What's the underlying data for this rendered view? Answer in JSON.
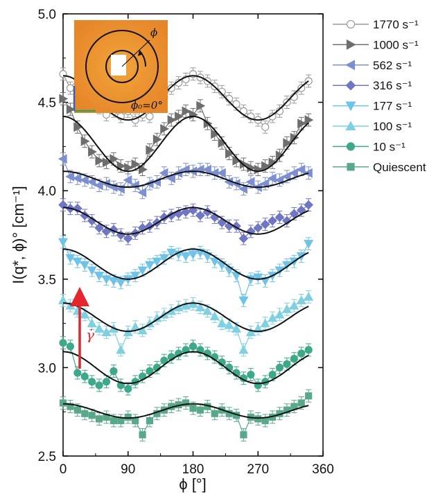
{
  "chart_data": {
    "type": "line",
    "xlabel": "ϕ [°]",
    "ylabel": "I(q*, ϕ)° [cm⁻¹]",
    "xlim": [
      0,
      360
    ],
    "ylim": [
      2.5,
      5.0
    ],
    "xticks": [
      0,
      90,
      180,
      270,
      360
    ],
    "xtick_labels": [
      "0",
      "90",
      "180",
      "270",
      "360"
    ],
    "yticks": [
      2.5,
      3.0,
      3.5,
      4.0,
      4.5,
      5.0
    ],
    "ytick_labels": [
      "2.5",
      "3.0",
      "3.5",
      "4.0",
      "4.5",
      "5.0"
    ],
    "grid": false,
    "legend_position": "right",
    "fit_note": "smooth black fit curves overlay each series",
    "series": [
      {
        "name": "1770 s⁻¹",
        "color": "#9a9a9a",
        "marker": "circle-open",
        "offset": 4.525,
        "amp": 0.125,
        "x": [
          0,
          10,
          20,
          30,
          40,
          50,
          60,
          70,
          80,
          90,
          100,
          110,
          120,
          130,
          140,
          150,
          160,
          170,
          180,
          190,
          200,
          210,
          220,
          230,
          240,
          250,
          260,
          270,
          280,
          290,
          300,
          310,
          320,
          330,
          340
        ],
        "y": [
          4.66,
          4.58,
          4.63,
          4.55,
          4.5,
          4.47,
          4.43,
          4.45,
          4.42,
          4.45,
          4.4,
          4.43,
          4.42,
          4.48,
          4.53,
          4.58,
          4.61,
          4.63,
          4.66,
          4.64,
          4.62,
          4.59,
          4.56,
          4.52,
          4.49,
          4.45,
          4.42,
          4.4,
          4.36,
          4.42,
          4.45,
          4.5,
          4.53,
          4.58,
          4.62
        ]
      },
      {
        "name": "1000 s⁻¹",
        "color": "#6e6e6e",
        "marker": "triangle-right",
        "offset": 4.265,
        "amp": 0.155,
        "x": [
          0,
          10,
          20,
          30,
          40,
          50,
          60,
          70,
          80,
          90,
          100,
          110,
          120,
          130,
          140,
          150,
          160,
          170,
          180,
          190,
          200,
          210,
          220,
          230,
          240,
          250,
          260,
          270,
          280,
          290,
          300,
          310,
          320,
          330,
          340
        ],
        "y": [
          4.52,
          4.46,
          4.36,
          4.28,
          4.22,
          4.17,
          4.16,
          4.18,
          4.14,
          4.13,
          4.15,
          4.12,
          4.23,
          4.29,
          4.35,
          4.4,
          4.42,
          4.45,
          4.43,
          4.48,
          4.38,
          4.32,
          4.27,
          4.21,
          4.17,
          4.15,
          4.13,
          4.12,
          4.14,
          4.16,
          4.2,
          4.27,
          4.3,
          4.38,
          4.4
        ]
      },
      {
        "name": "562 s⁻¹",
        "color": "#7c8fd0",
        "marker": "triangle-left",
        "offset": 4.065,
        "amp": 0.045,
        "x": [
          0,
          10,
          20,
          30,
          40,
          50,
          60,
          70,
          80,
          90,
          100,
          110,
          120,
          130,
          140,
          150,
          160,
          170,
          180,
          190,
          200,
          210,
          220,
          230,
          240,
          250,
          260,
          270,
          280,
          290,
          300,
          310,
          320,
          330,
          340
        ],
        "y": [
          4.18,
          4.08,
          4.07,
          4.06,
          4.05,
          4.03,
          4.04,
          4.02,
          4.01,
          4.06,
          4.03,
          3.99,
          4.04,
          4.05,
          4.1,
          4.07,
          4.1,
          4.12,
          4.11,
          4.12,
          4.12,
          4.1,
          4.1,
          4.05,
          4.04,
          4.01,
          4.05,
          4.02,
          4.04,
          4.07,
          4.06,
          4.08,
          4.1,
          4.12,
          4.1
        ]
      },
      {
        "name": "316 s⁻¹",
        "color": "#6f76c4",
        "marker": "diamond",
        "offset": 3.83,
        "amp": 0.075,
        "x": [
          0,
          10,
          20,
          30,
          40,
          50,
          60,
          70,
          80,
          90,
          100,
          110,
          120,
          130,
          140,
          150,
          160,
          170,
          180,
          190,
          200,
          210,
          220,
          230,
          240,
          250,
          260,
          270,
          280,
          290,
          300,
          310,
          320,
          330,
          340
        ],
        "y": [
          3.92,
          3.9,
          3.9,
          3.86,
          3.83,
          3.79,
          3.77,
          3.78,
          3.75,
          3.73,
          3.76,
          3.79,
          3.8,
          3.82,
          3.85,
          3.86,
          3.87,
          3.88,
          3.89,
          3.86,
          3.88,
          3.85,
          3.82,
          3.8,
          3.8,
          3.73,
          3.77,
          3.79,
          3.81,
          3.83,
          3.85,
          3.83,
          3.87,
          3.89,
          3.92
        ]
      },
      {
        "name": "177 s⁻¹",
        "color": "#6fc3e8",
        "marker": "triangle-down",
        "offset": 3.585,
        "amp": 0.085,
        "x": [
          0,
          10,
          20,
          30,
          40,
          50,
          60,
          70,
          80,
          90,
          100,
          110,
          120,
          130,
          140,
          150,
          160,
          170,
          180,
          190,
          200,
          210,
          220,
          230,
          240,
          250,
          260,
          270,
          280,
          290,
          300,
          310,
          320,
          330,
          340
        ],
        "y": [
          3.71,
          3.62,
          3.6,
          3.58,
          3.55,
          3.52,
          3.5,
          3.49,
          3.48,
          3.5,
          3.52,
          3.55,
          3.58,
          3.6,
          3.62,
          3.65,
          3.64,
          3.63,
          3.64,
          3.65,
          3.63,
          3.6,
          3.58,
          3.55,
          3.52,
          3.38,
          3.5,
          3.51,
          3.49,
          3.52,
          3.55,
          3.58,
          3.6,
          3.63,
          3.7
        ]
      },
      {
        "name": "100 s⁻¹",
        "color": "#7fd0e0",
        "marker": "triangle-up",
        "offset": 3.285,
        "amp": 0.08,
        "x": [
          0,
          10,
          20,
          30,
          40,
          50,
          60,
          70,
          80,
          90,
          100,
          110,
          120,
          130,
          140,
          150,
          160,
          170,
          180,
          190,
          200,
          210,
          220,
          230,
          240,
          250,
          260,
          270,
          280,
          290,
          300,
          310,
          320,
          330,
          340
        ],
        "y": [
          3.38,
          3.35,
          3.32,
          3.3,
          3.25,
          3.22,
          3.2,
          3.22,
          3.1,
          3.2,
          3.23,
          3.21,
          3.25,
          3.28,
          3.3,
          3.32,
          3.34,
          3.35,
          3.36,
          3.34,
          3.32,
          3.29,
          3.25,
          3.24,
          3.22,
          3.1,
          3.2,
          3.22,
          3.25,
          3.28,
          3.3,
          3.33,
          3.35,
          3.38,
          3.4
        ]
      },
      {
        "name": "10 s⁻¹",
        "color": "#3da98a",
        "marker": "circle",
        "offset": 3.0,
        "amp": 0.09,
        "x": [
          0,
          10,
          20,
          30,
          40,
          50,
          60,
          70,
          80,
          90,
          100,
          110,
          120,
          130,
          140,
          150,
          160,
          170,
          180,
          190,
          200,
          210,
          220,
          230,
          240,
          250,
          260,
          270,
          280,
          290,
          300,
          310,
          320,
          330,
          340
        ],
        "y": [
          3.14,
          3.12,
          2.97,
          2.95,
          2.92,
          2.9,
          2.92,
          2.98,
          2.9,
          2.88,
          2.92,
          2.95,
          2.98,
          3.0,
          3.04,
          3.06,
          3.08,
          3.1,
          3.12,
          3.1,
          3.08,
          3.06,
          3.03,
          3.0,
          2.97,
          2.94,
          2.96,
          2.9,
          2.92,
          2.96,
          3.0,
          3.02,
          3.05,
          3.08,
          3.1
        ]
      },
      {
        "name": "Quiescent",
        "color": "#5aa88a",
        "marker": "square",
        "offset": 2.755,
        "amp": 0.04,
        "x": [
          0,
          10,
          20,
          30,
          40,
          50,
          60,
          70,
          80,
          90,
          100,
          110,
          120,
          130,
          140,
          150,
          160,
          170,
          180,
          190,
          200,
          210,
          220,
          230,
          240,
          250,
          260,
          270,
          280,
          290,
          300,
          310,
          320,
          330,
          340
        ],
        "y": [
          2.8,
          2.78,
          2.76,
          2.74,
          2.73,
          2.71,
          2.72,
          2.7,
          2.7,
          2.72,
          2.7,
          2.62,
          2.7,
          2.74,
          2.76,
          2.78,
          2.79,
          2.8,
          2.77,
          2.76,
          2.78,
          2.74,
          2.76,
          2.74,
          2.73,
          2.62,
          2.72,
          2.71,
          2.7,
          2.72,
          2.74,
          2.76,
          2.78,
          2.8,
          2.84
        ]
      }
    ],
    "annotations": {
      "arrow_label": "γ̇",
      "inset_phi": "ϕ",
      "inset_phi0": "ϕ₀=0°"
    }
  }
}
